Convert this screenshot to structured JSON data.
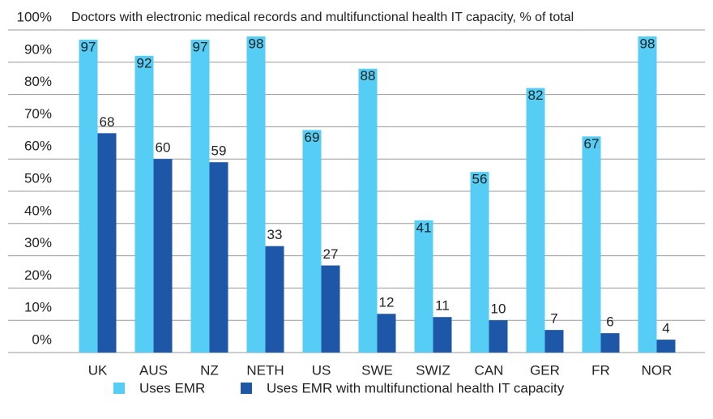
{
  "chart_data": {
    "type": "bar",
    "title": "Doctors with electronic medical records and multifunctional health IT capacity, % of total",
    "categories": [
      "UK",
      "AUS",
      "NZ",
      "NETH",
      "US",
      "SWE",
      "SWIZ",
      "CAN",
      "GER",
      "FR",
      "NOR"
    ],
    "series": [
      {
        "name": "Uses EMR",
        "color": "#55cdf5",
        "values": [
          97,
          92,
          97,
          98,
          69,
          88,
          41,
          56,
          82,
          67,
          98
        ]
      },
      {
        "name": "Uses EMR with multifunctional health IT capacity",
        "color": "#1f57a8",
        "values": [
          68,
          60,
          59,
          33,
          27,
          12,
          11,
          10,
          7,
          6,
          4
        ]
      }
    ],
    "ylim": [
      0,
      100
    ],
    "yticks": [
      {
        "value": 0,
        "label": "0%"
      },
      {
        "value": 10,
        "label": "10%"
      },
      {
        "value": 20,
        "label": "20%"
      },
      {
        "value": 30,
        "label": "30%"
      },
      {
        "value": 40,
        "label": "40%"
      },
      {
        "value": 50,
        "label": "50%"
      },
      {
        "value": 60,
        "label": "60%"
      },
      {
        "value": 70,
        "label": "70%"
      },
      {
        "value": 80,
        "label": "80%"
      },
      {
        "value": 90,
        "label": "90%"
      },
      {
        "value": 100,
        "label": "100%"
      }
    ],
    "grid": true
  }
}
